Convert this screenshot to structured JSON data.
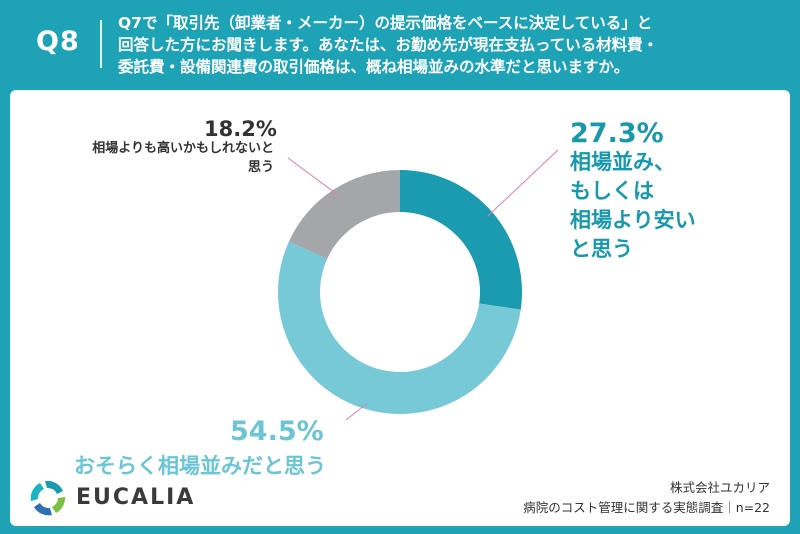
{
  "header": {
    "q_number": "Q8",
    "question_lines": [
      "Q7で「取引先（卸業者・メーカー）の提示価格をベースに決定している」と",
      "回答した方にお聞きします。あなたは、お勤め先が現在支払っている材料費・",
      "委託費・設備関連費の取引価格は、概ね相場並みの水準だと思いますか。"
    ]
  },
  "chart_data": {
    "type": "pie",
    "donut": true,
    "slices": [
      {
        "percent_label": "27.3%",
        "value": 27.3,
        "label_lines": [
          "相場並み、",
          "もしくは",
          "相場より安い",
          "と思う"
        ],
        "color": "#1a9bb0"
      },
      {
        "percent_label": "54.5%",
        "value": 54.5,
        "label_lines": [
          "おそらく相場並みだと思う"
        ],
        "color": "#77c9d8"
      },
      {
        "percent_label": "18.2%",
        "value": 18.2,
        "label_lines": [
          "相場よりも高いかもしれないと",
          "思う"
        ],
        "color": "#a5a6aa"
      }
    ],
    "start_angle_deg": 0,
    "direction": "clockwise",
    "legend": "none"
  },
  "footer": {
    "logo_text": "EUCALIA",
    "company": "株式会社ユカリア",
    "survey": "病院のコスト管理に関する実態調査｜n=22"
  },
  "colors": {
    "header_bg": "#1da2b6",
    "text_dark": "#333333",
    "leader_line": "#e07fa6"
  }
}
